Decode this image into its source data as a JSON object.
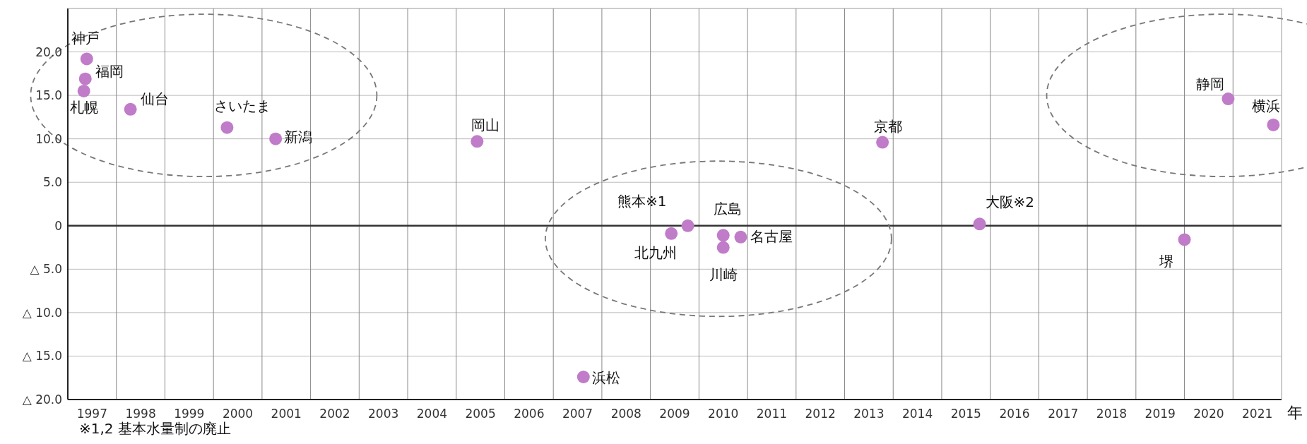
{
  "chart_data": {
    "type": "scatter",
    "xlabel": "年",
    "color": "#c07cc8",
    "marker": "circle",
    "grid": true,
    "x": [
      1996.89,
      1996.86,
      1996.83,
      1997.79,
      1999.78,
      2000.78,
      2004.93,
      2009.27,
      2008.93,
      2010.0,
      2010.36,
      2010.0,
      2007.12,
      2013.28,
      2015.28,
      2019.5,
      2020.4,
      2021.33
    ],
    "values": [
      19.2,
      16.9,
      15.5,
      13.4,
      11.3,
      10.0,
      9.7,
      0.0,
      -0.9,
      -1.1,
      -1.3,
      -2.5,
      -17.4,
      9.6,
      0.2,
      -1.6,
      14.6,
      11.6
    ],
    "xlim": [
      1996.5,
      2021.5
    ],
    "ylim": [
      -20,
      25
    ],
    "xticks": [
      1997,
      1998,
      1999,
      2000,
      2001,
      2002,
      2003,
      2004,
      2005,
      2006,
      2007,
      2008,
      2009,
      2010,
      2011,
      2012,
      2013,
      2014,
      2015,
      2016,
      2017,
      2018,
      2019,
      2020,
      2021
    ],
    "yticks": [
      {
        "value": 20,
        "label": "20.0"
      },
      {
        "value": 15,
        "label": "15.0"
      },
      {
        "value": 10,
        "label": "10.0"
      },
      {
        "value": 5,
        "label": "5.0"
      },
      0,
      {
        "value": -5,
        "label": "△ 5.0"
      },
      {
        "value": -10,
        "label": "△ 10.0"
      },
      {
        "value": -15,
        "label": "△ 15.0"
      },
      {
        "value": -20,
        "label": "△ 20.0"
      }
    ],
    "ref_lines": [
      {
        "axis": "y",
        "value": 0,
        "color": "#333333"
      }
    ],
    "annotations": [
      {
        "text": "神戸",
        "x": 1996.89,
        "y": 19.2
      },
      {
        "text": "福岡",
        "x": 1996.86,
        "y": 16.9
      },
      {
        "text": "札幌",
        "x": 1996.83,
        "y": 15.5
      },
      {
        "text": "仙台",
        "x": 1997.79,
        "y": 13.4
      },
      {
        "text": "さいたま",
        "x": 1999.78,
        "y": 11.3
      },
      {
        "text": "新潟",
        "x": 2000.78,
        "y": 10.0
      },
      {
        "text": "岡山",
        "x": 2004.93,
        "y": 9.7
      },
      {
        "text": "熊本※1",
        "x": 2009.27,
        "y": 0.0
      },
      {
        "text": "北九州",
        "x": 2008.93,
        "y": -0.9
      },
      {
        "text": "広島",
        "x": 2010.0,
        "y": -1.1
      },
      {
        "text": "名古屋",
        "x": 2010.36,
        "y": -1.3
      },
      {
        "text": "川崎",
        "x": 2010.0,
        "y": -2.5
      },
      {
        "text": "浜松",
        "x": 2007.12,
        "y": -17.4
      },
      {
        "text": "京都",
        "x": 2013.28,
        "y": 9.6
      },
      {
        "text": "大阪※2",
        "x": 2015.28,
        "y": 0.2
      },
      {
        "text": "堺",
        "x": 2019.5,
        "y": -1.6
      },
      {
        "text": "静岡",
        "x": 2020.4,
        "y": 14.6
      },
      {
        "text": "横浜",
        "x": 2021.33,
        "y": 11.6
      },
      "※1,2 基本水量制の廃止"
    ]
  }
}
